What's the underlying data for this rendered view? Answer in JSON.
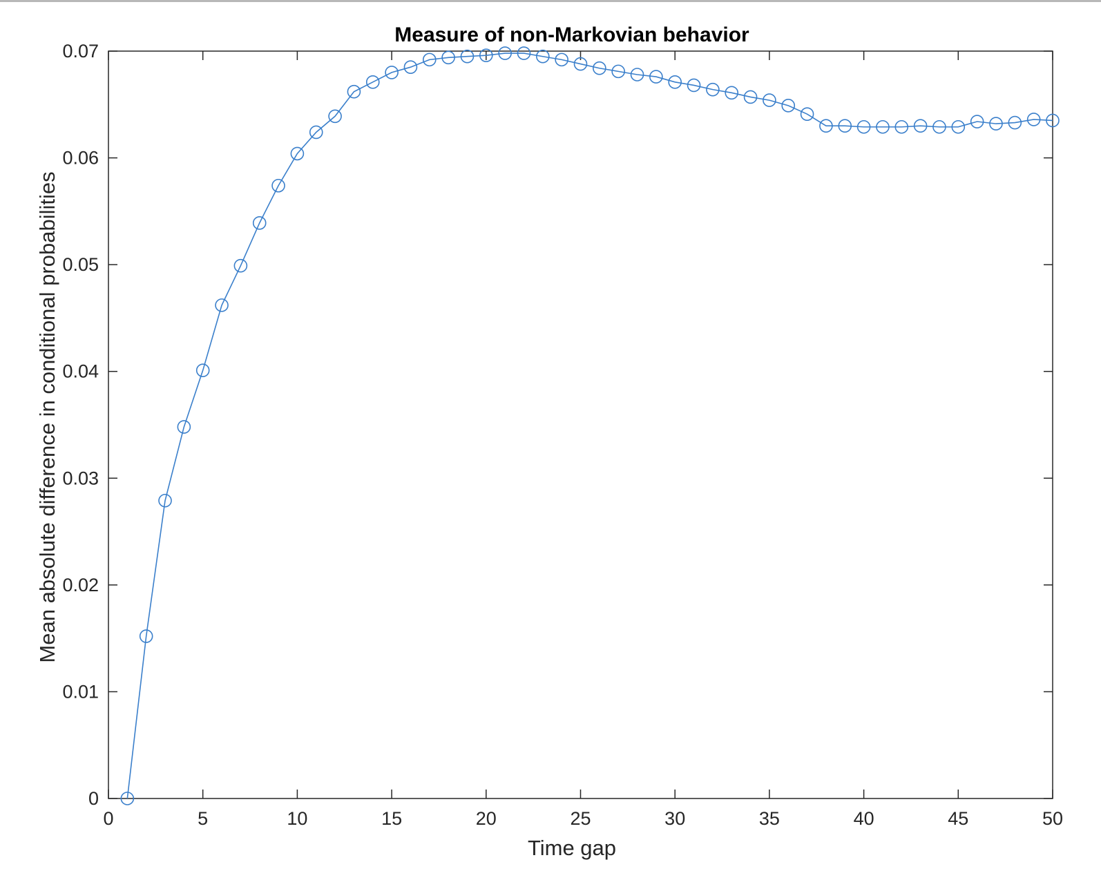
{
  "chart_data": {
    "type": "line",
    "title": "Measure of non-Markovian behavior",
    "xlabel": "Time gap",
    "ylabel": "Mean absolute difference in conditional probabilities",
    "xlim": [
      0,
      50
    ],
    "ylim": [
      0,
      0.07
    ],
    "xticks": [
      "0",
      "5",
      "10",
      "15",
      "20",
      "25",
      "30",
      "35",
      "40",
      "45",
      "50"
    ],
    "yticks": [
      "0",
      "0.01",
      "0.02",
      "0.03",
      "0.04",
      "0.05",
      "0.06",
      "0.07"
    ],
    "grid": false,
    "marker": "circle",
    "color": "#3a7fcb",
    "series": [
      {
        "x": [
          1,
          2,
          3,
          4,
          5,
          6,
          7,
          8,
          9,
          10,
          11,
          12,
          13,
          14,
          15,
          16,
          17,
          18,
          19,
          20,
          21,
          22,
          23,
          24,
          25,
          26,
          27,
          28,
          29,
          30,
          31,
          32,
          33,
          34,
          35,
          36,
          37,
          38,
          39,
          40,
          41,
          42,
          43,
          44,
          45,
          46,
          47,
          48,
          49,
          50
        ],
        "values": [
          0.0,
          0.0152,
          0.0279,
          0.0348,
          0.0401,
          0.0462,
          0.0499,
          0.0539,
          0.0574,
          0.0604,
          0.0624,
          0.0639,
          0.0662,
          0.0671,
          0.068,
          0.0685,
          0.0692,
          0.0694,
          0.0695,
          0.0696,
          0.0698,
          0.0698,
          0.0695,
          0.0692,
          0.0688,
          0.0684,
          0.0681,
          0.0678,
          0.0676,
          0.0671,
          0.0668,
          0.0664,
          0.0661,
          0.0657,
          0.0654,
          0.0649,
          0.0641,
          0.063,
          0.063,
          0.0629,
          0.0629,
          0.0629,
          0.063,
          0.0629,
          0.0629,
          0.0634,
          0.0632,
          0.0633,
          0.0636,
          0.0635
        ]
      }
    ]
  }
}
